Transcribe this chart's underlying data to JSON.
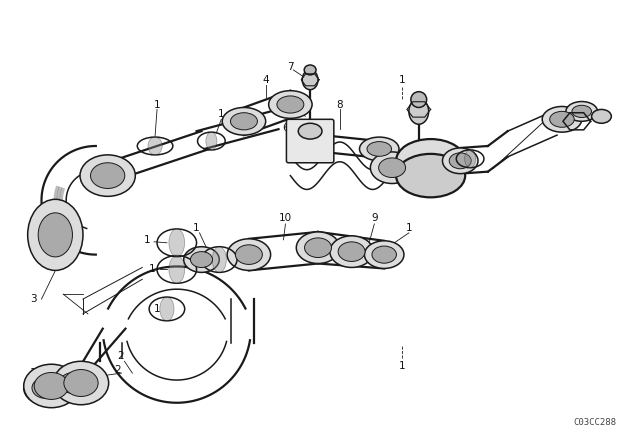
{
  "background_color": "#ffffff",
  "diagram_code": "C03CC288",
  "fig_width": 6.4,
  "fig_height": 4.48,
  "dpi": 100,
  "line_color": "#1a1a1a",
  "label_fontsize": 7.5,
  "label_color": "#111111",
  "code_fontsize": 6.5,
  "code_color": "#444444"
}
